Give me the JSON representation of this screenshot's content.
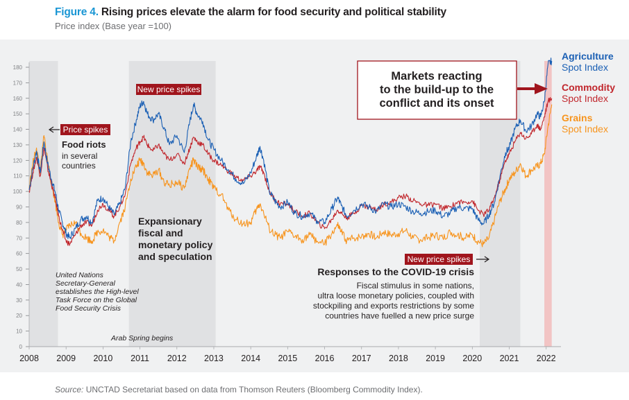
{
  "header": {
    "figure_label": "Figure 4.",
    "title": "Rising prices elevate the alarm for food security and political stability",
    "subtitle": "Price index (Base year =100)"
  },
  "footer": {
    "source_label": "Source:",
    "source_text": "UNCTAD Secretariat based on data from Thomson Reuters (Bloomberg Commodity Index)."
  },
  "colors": {
    "agriculture": "#1a5fb4",
    "commodity": "#c1272d",
    "grains": "#f7941d",
    "shade": "#e0e1e3",
    "onset_band": "#f2c4c4",
    "label_box": "#a0151d"
  },
  "chart_data": {
    "type": "line",
    "title": "Rising prices elevate the alarm for food security and political stability",
    "ylabel": "Price index (Base year =100)",
    "xlim": [
      2008.0,
      2022.25
    ],
    "ylim": [
      0,
      180
    ],
    "y_ticks": [
      0,
      10,
      20,
      30,
      40,
      50,
      60,
      70,
      80,
      90,
      100,
      110,
      120,
      130,
      140,
      150,
      160,
      170,
      180
    ],
    "x_ticks": [
      "2008",
      "2009",
      "2010",
      "2011",
      "2012",
      "2013",
      "2014",
      "2015",
      "2016",
      "2017",
      "2018",
      "2019",
      "2020",
      "2021",
      "2022"
    ],
    "grid": false,
    "legend_placement": "right",
    "shaded_periods": [
      {
        "start": 2008.0,
        "end": 2008.78
      },
      {
        "start": 2010.7,
        "end": 2013.05
      },
      {
        "start": 2020.2,
        "end": 2021.3
      }
    ],
    "highlight_period": {
      "start": 2021.95,
      "end": 2022.15
    },
    "series": [
      {
        "name": "Agriculture Spot Index",
        "legend": [
          "Agriculture",
          "Spot Index"
        ],
        "x": [
          2008.0,
          2008.1,
          2008.2,
          2008.3,
          2008.4,
          2008.5,
          2008.6,
          2008.7,
          2008.8,
          2008.9,
          2009.0,
          2009.1,
          2009.25,
          2009.4,
          2009.55,
          2009.7,
          2009.85,
          2010.0,
          2010.15,
          2010.3,
          2010.45,
          2010.6,
          2010.75,
          2010.9,
          2011.0,
          2011.1,
          2011.2,
          2011.35,
          2011.5,
          2011.65,
          2011.8,
          2012.0,
          2012.2,
          2012.35,
          2012.45,
          2012.55,
          2012.7,
          2012.85,
          2013.0,
          2013.2,
          2013.4,
          2013.6,
          2013.8,
          2014.0,
          2014.15,
          2014.25,
          2014.35,
          2014.5,
          2014.65,
          2014.8,
          2015.0,
          2015.2,
          2015.4,
          2015.6,
          2015.8,
          2016.0,
          2016.2,
          2016.35,
          2016.45,
          2016.6,
          2016.8,
          2017.0,
          2017.2,
          2017.4,
          2017.6,
          2017.8,
          2018.0,
          2018.2,
          2018.4,
          2018.6,
          2018.8,
          2019.0,
          2019.2,
          2019.4,
          2019.6,
          2019.8,
          2020.0,
          2020.15,
          2020.3,
          2020.45,
          2020.6,
          2020.75,
          2020.9,
          2021.0,
          2021.15,
          2021.3,
          2021.45,
          2021.6,
          2021.75,
          2021.85,
          2021.95,
          2022.05,
          2022.15
        ],
        "values": [
          101,
          115,
          126,
          112,
          132,
          118,
          108,
          100,
          88,
          80,
          73,
          70,
          76,
          82,
          84,
          80,
          94,
          96,
          90,
          85,
          92,
          102,
          132,
          146,
          155,
          158,
          150,
          146,
          150,
          141,
          130,
          136,
          125,
          145,
          156,
          150,
          145,
          133,
          127,
          120,
          114,
          108,
          105,
          112,
          122,
          129,
          120,
          100,
          94,
          90,
          93,
          86,
          84,
          86,
          81,
          80,
          89,
          96,
          91,
          84,
          88,
          92,
          90,
          87,
          92,
          90,
          92,
          90,
          87,
          86,
          87,
          88,
          84,
          86,
          90,
          89,
          89,
          82,
          79,
          85,
          93,
          110,
          125,
          128,
          140,
          146,
          139,
          142,
          150,
          148,
          158,
          182,
          184
        ]
      },
      {
        "name": "Commodity Spot Index",
        "legend": [
          "Commodity",
          "Spot Index"
        ],
        "x": [
          2008.0,
          2008.1,
          2008.2,
          2008.3,
          2008.4,
          2008.5,
          2008.6,
          2008.7,
          2008.8,
          2008.9,
          2009.0,
          2009.1,
          2009.25,
          2009.4,
          2009.55,
          2009.7,
          2009.85,
          2010.0,
          2010.15,
          2010.3,
          2010.45,
          2010.6,
          2010.75,
          2010.9,
          2011.0,
          2011.1,
          2011.2,
          2011.35,
          2011.5,
          2011.65,
          2011.8,
          2012.0,
          2012.2,
          2012.35,
          2012.45,
          2012.55,
          2012.7,
          2012.85,
          2013.0,
          2013.2,
          2013.4,
          2013.6,
          2013.8,
          2014.0,
          2014.15,
          2014.25,
          2014.35,
          2014.5,
          2014.65,
          2014.8,
          2015.0,
          2015.2,
          2015.4,
          2015.6,
          2015.8,
          2016.0,
          2016.2,
          2016.35,
          2016.45,
          2016.6,
          2016.8,
          2017.0,
          2017.2,
          2017.4,
          2017.6,
          2017.8,
          2018.0,
          2018.2,
          2018.4,
          2018.6,
          2018.8,
          2019.0,
          2019.2,
          2019.4,
          2019.6,
          2019.8,
          2020.0,
          2020.15,
          2020.3,
          2020.45,
          2020.6,
          2020.75,
          2020.9,
          2021.0,
          2021.15,
          2021.3,
          2021.45,
          2021.6,
          2021.75,
          2021.85,
          2021.95,
          2022.05,
          2022.15
        ],
        "values": [
          100,
          112,
          122,
          110,
          128,
          115,
          105,
          96,
          84,
          75,
          68,
          66,
          72,
          78,
          80,
          78,
          88,
          92,
          88,
          84,
          90,
          98,
          118,
          128,
          132,
          135,
          130,
          126,
          130,
          124,
          120,
          124,
          118,
          128,
          135,
          132,
          130,
          124,
          120,
          117,
          113,
          109,
          107,
          110,
          113,
          116,
          112,
          100,
          95,
          92,
          92,
          87,
          84,
          86,
          80,
          76,
          82,
          88,
          86,
          83,
          86,
          91,
          90,
          88,
          92,
          93,
          96,
          97,
          94,
          92,
          91,
          92,
          89,
          90,
          93,
          93,
          94,
          88,
          85,
          88,
          96,
          108,
          120,
          124,
          132,
          138,
          134,
          137,
          143,
          140,
          148,
          158,
          160
        ]
      },
      {
        "name": "Grains Spot Index",
        "legend": [
          "Grains",
          "Spot Index"
        ],
        "x": [
          2008.0,
          2008.1,
          2008.2,
          2008.3,
          2008.4,
          2008.5,
          2008.6,
          2008.7,
          2008.8,
          2008.9,
          2009.0,
          2009.1,
          2009.25,
          2009.4,
          2009.55,
          2009.7,
          2009.85,
          2010.0,
          2010.15,
          2010.3,
          2010.45,
          2010.6,
          2010.75,
          2010.9,
          2011.0,
          2011.1,
          2011.2,
          2011.35,
          2011.5,
          2011.65,
          2011.8,
          2012.0,
          2012.2,
          2012.35,
          2012.45,
          2012.55,
          2012.7,
          2012.85,
          2013.0,
          2013.2,
          2013.4,
          2013.6,
          2013.8,
          2014.0,
          2014.15,
          2014.25,
          2014.35,
          2014.5,
          2014.65,
          2014.8,
          2015.0,
          2015.2,
          2015.4,
          2015.6,
          2015.8,
          2016.0,
          2016.2,
          2016.35,
          2016.45,
          2016.6,
          2016.8,
          2017.0,
          2017.2,
          2017.4,
          2017.6,
          2017.8,
          2018.0,
          2018.2,
          2018.4,
          2018.6,
          2018.8,
          2019.0,
          2019.2,
          2019.4,
          2019.6,
          2019.8,
          2020.0,
          2020.15,
          2020.3,
          2020.45,
          2020.6,
          2020.75,
          2020.9,
          2021.0,
          2021.15,
          2021.3,
          2021.45,
          2021.6,
          2021.75,
          2021.85,
          2021.95,
          2022.05,
          2022.15
        ],
        "values": [
          102,
          118,
          128,
          112,
          136,
          120,
          106,
          94,
          80,
          72,
          75,
          78,
          80,
          73,
          70,
          68,
          74,
          75,
          71,
          68,
          80,
          90,
          108,
          116,
          120,
          118,
          112,
          110,
          114,
          106,
          104,
          106,
          102,
          115,
          120,
          116,
          114,
          108,
          102,
          98,
          88,
          82,
          79,
          80,
          88,
          92,
          86,
          76,
          72,
          70,
          74,
          71,
          69,
          72,
          68,
          66,
          73,
          78,
          74,
          68,
          70,
          71,
          73,
          70,
          74,
          72,
          73,
          75,
          70,
          69,
          70,
          72,
          70,
          74,
          72,
          70,
          72,
          68,
          66,
          70,
          82,
          94,
          102,
          108,
          112,
          118,
          110,
          114,
          116,
          118,
          124,
          142,
          156
        ]
      }
    ],
    "annotations": {
      "price_spikes": "Price spikes",
      "food_riots_title": "Food riots",
      "food_riots_text": [
        "in several",
        "countries"
      ],
      "new_price_spikes_1": "New price spikes",
      "new_price_spikes_2": "New price spikes",
      "expansionary": [
        "Expansionary",
        "fiscal and",
        "monetary policy",
        "and speculation"
      ],
      "un_text": [
        "United Nations",
        "Secretary-General",
        "establishes the High-level",
        "Task Force on the Global",
        "Food Security Crisis"
      ],
      "arab_spring": "Arab Spring begins",
      "covid_title": "Responses to the COVID-19 crisis",
      "covid_text": [
        "Fiscal stimulus in some nations,",
        "ultra loose monetary policies, coupled with",
        "stockpiling and exports restrictions by some",
        "countries have fuelled a new price surge"
      ],
      "markets_box": [
        "Markets reacting",
        "to the build-up to the",
        "conflict and its onset"
      ]
    }
  }
}
